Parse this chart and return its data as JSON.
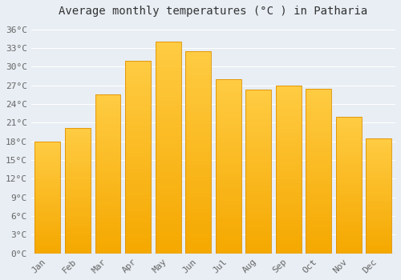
{
  "title": "Average monthly temperatures (°C ) in Patharia",
  "months": [
    "Jan",
    "Feb",
    "Mar",
    "Apr",
    "May",
    "Jun",
    "Jul",
    "Aug",
    "Sep",
    "Oct",
    "Nov",
    "Dec"
  ],
  "values": [
    18.0,
    20.2,
    25.5,
    31.0,
    34.0,
    32.5,
    28.0,
    26.3,
    27.0,
    26.5,
    22.0,
    18.5
  ],
  "bar_color_top": "#FFCC44",
  "bar_color_bottom": "#F5A800",
  "bar_edge_color": "#E09000",
  "background_color": "#E8EEF4",
  "plot_bg_color": "#E8EEF4",
  "grid_color": "#FFFFFF",
  "tick_label_color": "#666666",
  "title_color": "#333333",
  "ylim": [
    0,
    37
  ],
  "yticks": [
    0,
    3,
    6,
    9,
    12,
    15,
    18,
    21,
    24,
    27,
    30,
    33,
    36
  ],
  "title_fontsize": 10,
  "tick_fontsize": 8,
  "figsize": [
    5.0,
    3.5
  ],
  "dpi": 100
}
